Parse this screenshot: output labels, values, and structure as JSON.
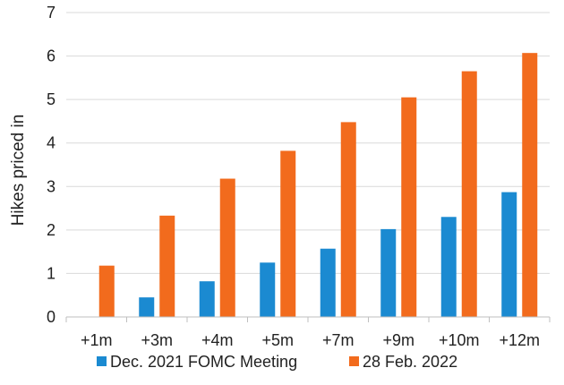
{
  "chart_data": {
    "type": "bar",
    "title": "",
    "xlabel": "",
    "ylabel": "Hikes priced in",
    "ylim": [
      0,
      7
    ],
    "yticks": [
      0,
      1,
      2,
      3,
      4,
      5,
      6,
      7
    ],
    "grid": true,
    "legend_position": "bottom",
    "categories": [
      "+1m",
      "+3m",
      "+4m",
      "+5m",
      "+7m",
      "+9m",
      "+10m",
      "+12m"
    ],
    "series": [
      {
        "name": "Dec. 2021 FOMC Meeting",
        "color": "#1b8ad1",
        "values": [
          0,
          0.45,
          0.82,
          1.25,
          1.57,
          2.02,
          2.3,
          2.87
        ]
      },
      {
        "name": "28 Feb. 2022",
        "color": "#f26b1d",
        "values": [
          1.18,
          2.33,
          3.18,
          3.82,
          4.48,
          5.05,
          5.65,
          6.07
        ]
      }
    ]
  }
}
